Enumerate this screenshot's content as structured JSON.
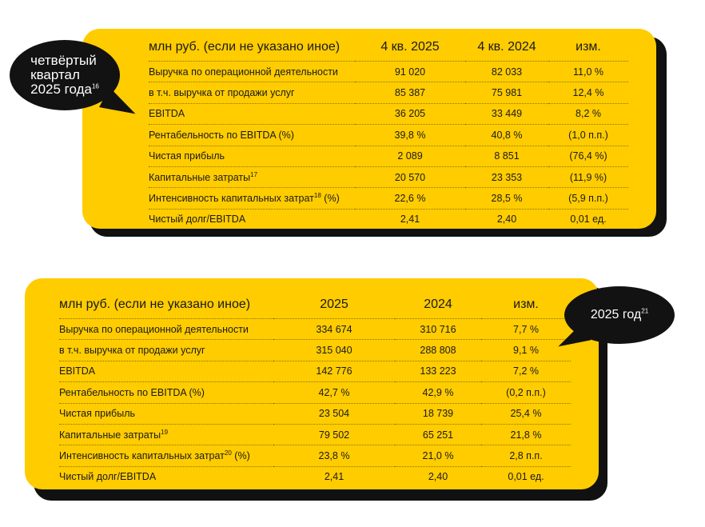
{
  "q4": {
    "bubble": {
      "lines": [
        "четвёртый",
        "квартал",
        "2025 года"
      ],
      "sup": "16"
    },
    "headers": [
      "млн руб. (если не указано иное)",
      "4 кв. 2025",
      "4 кв. 2024",
      "изм."
    ],
    "rows": [
      {
        "label": "Выручка по операционной деятельности",
        "sup": "",
        "suffix": "",
        "v1": "91 020",
        "v2": "82 033",
        "chg": "11,0 %"
      },
      {
        "label": "в т.ч. выручка от продажи услуг",
        "sup": "",
        "suffix": "",
        "v1": "85 387",
        "v2": "75 981",
        "chg": "12,4 %"
      },
      {
        "label": "EBITDA",
        "sup": "",
        "suffix": "",
        "v1": "36 205",
        "v2": "33 449",
        "chg": "8,2 %"
      },
      {
        "label": "Рентабельность по EBITDA (%)",
        "sup": "",
        "suffix": "",
        "v1": "39,8 %",
        "v2": "40,8 %",
        "chg": "(1,0 п.п.)"
      },
      {
        "label": "Чистая прибыль",
        "sup": "",
        "suffix": "",
        "v1": "2 089",
        "v2": "8 851",
        "chg": "(76,4 %)"
      },
      {
        "label": "Капитальные затраты",
        "sup": "17",
        "suffix": "",
        "v1": "20 570",
        "v2": "23 353",
        "chg": "(11,9 %)"
      },
      {
        "label": "Интенсивность капитальных затрат",
        "sup": "18",
        "suffix": " (%)",
        "v1": "22,6 %",
        "v2": "28,5 %",
        "chg": "(5,9 п.п.)"
      },
      {
        "label": "Чистый долг/EBITDA",
        "sup": "",
        "suffix": "",
        "v1": "2,41",
        "v2": "2,40",
        "chg": "0,01 ед."
      }
    ]
  },
  "fy": {
    "bubble": {
      "text": "2025 год",
      "sup": "21"
    },
    "headers": [
      "млн руб. (если не указано иное)",
      "2025",
      "2024",
      "изм."
    ],
    "rows": [
      {
        "label": "Выручка по операционной деятельности",
        "sup": "",
        "suffix": "",
        "v1": "334 674",
        "v2": "310 716",
        "chg": "7,7 %"
      },
      {
        "label": "в т.ч. выручка от продажи услуг",
        "sup": "",
        "suffix": "",
        "v1": "315 040",
        "v2": "288 808",
        "chg": "9,1 %"
      },
      {
        "label": "EBITDA",
        "sup": "",
        "suffix": "",
        "v1": "142 776",
        "v2": "133 223",
        "chg": "7,2 %"
      },
      {
        "label": "Рентабельность по EBITDA (%)",
        "sup": "",
        "suffix": "",
        "v1": "42,7 %",
        "v2": "42,9 %",
        "chg": "(0,2 п.п.)"
      },
      {
        "label": "Чистая прибыль",
        "sup": "",
        "suffix": "",
        "v1": "23 504",
        "v2": "18 739",
        "chg": "25,4 %"
      },
      {
        "label": "Капитальные затраты",
        "sup": "19",
        "suffix": "",
        "v1": "79 502",
        "v2": "65 251",
        "chg": "21,8 %"
      },
      {
        "label": "Интенсивность капитальных затрат",
        "sup": "20",
        "suffix": " (%)",
        "v1": "23,8 %",
        "v2": "21,0 %",
        "chg": "2,8 п.п."
      },
      {
        "label": "Чистый долг/EBITDA",
        "sup": "",
        "suffix": "",
        "v1": "2,41",
        "v2": "2,40",
        "chg": "0,01 ед."
      }
    ]
  },
  "colors": {
    "accent": "#ffcc00",
    "dark": "#121212"
  }
}
